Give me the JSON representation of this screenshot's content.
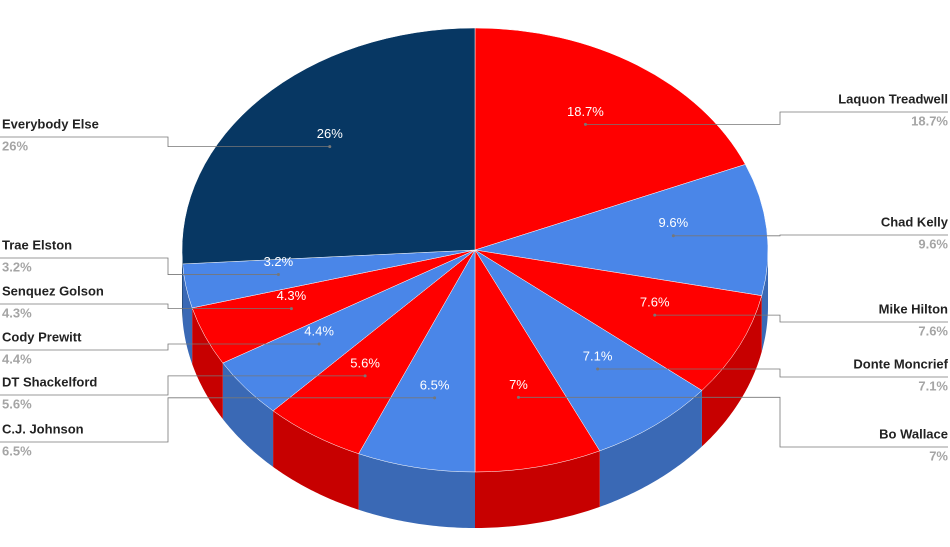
{
  "chart_data": {
    "type": "pie",
    "categories": [
      "Laquon Treadwell",
      "Chad Kelly",
      "Mike Hilton",
      "Donte Moncrief",
      "Bo Wallace",
      "C.J. Johnson",
      "DT Shackelford",
      "Cody Prewitt",
      "Senquez Golson",
      "Trae Elston",
      "Everybody Else"
    ],
    "values": [
      18.7,
      9.6,
      7.6,
      7.1,
      7,
      6.5,
      5.6,
      4.4,
      4.3,
      3.2,
      26
    ],
    "value_labels": [
      "18.7%",
      "9.6%",
      "7.6%",
      "7.1%",
      "7%",
      "6.5%",
      "5.6%",
      "4.4%",
      "4.3%",
      "3.2%",
      "26%"
    ],
    "colors": [
      "#ff0000",
      "#4a86e8",
      "#ff0000",
      "#4a86e8",
      "#ff0000",
      "#4a86e8",
      "#ff0000",
      "#4a86e8",
      "#ff0000",
      "#4a86e8",
      "#073763"
    ]
  }
}
